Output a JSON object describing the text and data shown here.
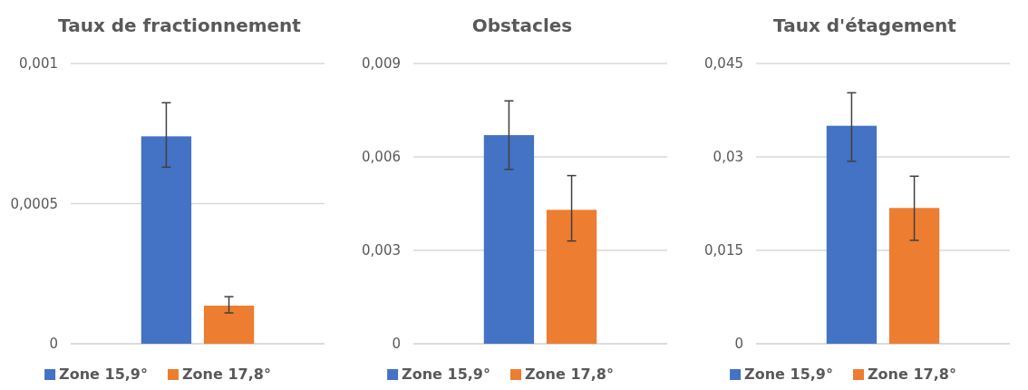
{
  "chart_data": [
    {
      "type": "bar",
      "title": "Taux de fractionnement",
      "categories": [
        null
      ],
      "series": [
        {
          "name": "Zone 15,9°",
          "color": "#4472c4",
          "values": [
            0.00074
          ],
          "errors": [
            [
              0.00063,
              0.00086
            ]
          ]
        },
        {
          "name": "Zone 17,8°",
          "color": "#ed7d31",
          "values": [
            0.000136
          ],
          "errors": [
            [
              0.00011,
              0.000168
            ]
          ]
        }
      ],
      "ylim": [
        0,
        0.001
      ],
      "yticks": [
        {
          "value": 0,
          "label": "0"
        },
        {
          "value": 0.0005,
          "label": "0,0005"
        },
        {
          "value": 0.001,
          "label": "0,001"
        }
      ],
      "grid": "y",
      "legend": "bottom"
    },
    {
      "type": "bar",
      "title": "Obstacles",
      "categories": [
        null
      ],
      "series": [
        {
          "name": "Zone 15,9°",
          "color": "#4472c4",
          "values": [
            0.0067
          ],
          "errors": [
            [
              0.0056,
              0.0078
            ]
          ]
        },
        {
          "name": "Zone 17,8°",
          "color": "#ed7d31",
          "values": [
            0.0043
          ],
          "errors": [
            [
              0.0033,
              0.0054
            ]
          ]
        }
      ],
      "ylim": [
        0,
        0.009
      ],
      "yticks": [
        {
          "value": 0,
          "label": "0"
        },
        {
          "value": 0.003,
          "label": "0,003"
        },
        {
          "value": 0.006,
          "label": "0,006"
        },
        {
          "value": 0.009,
          "label": "0,009"
        }
      ],
      "grid": "y",
      "legend": "bottom"
    },
    {
      "type": "bar",
      "title": "Taux d'étagement",
      "categories": [
        null
      ],
      "series": [
        {
          "name": "Zone 15,9°",
          "color": "#4472c4",
          "values": [
            0.035
          ],
          "errors": [
            [
              0.0293,
              0.0403
            ]
          ]
        },
        {
          "name": "Zone 17,8°",
          "color": "#ed7d31",
          "values": [
            0.0218
          ],
          "errors": [
            [
              0.0166,
              0.0269
            ]
          ]
        }
      ],
      "ylim": [
        0,
        0.045
      ],
      "yticks": [
        {
          "value": 0,
          "label": "0"
        },
        {
          "value": 0.015,
          "label": "0,015"
        },
        {
          "value": 0.03,
          "label": "0,03"
        },
        {
          "value": 0.045,
          "label": "0,045"
        }
      ],
      "grid": "y",
      "legend": "bottom"
    }
  ]
}
